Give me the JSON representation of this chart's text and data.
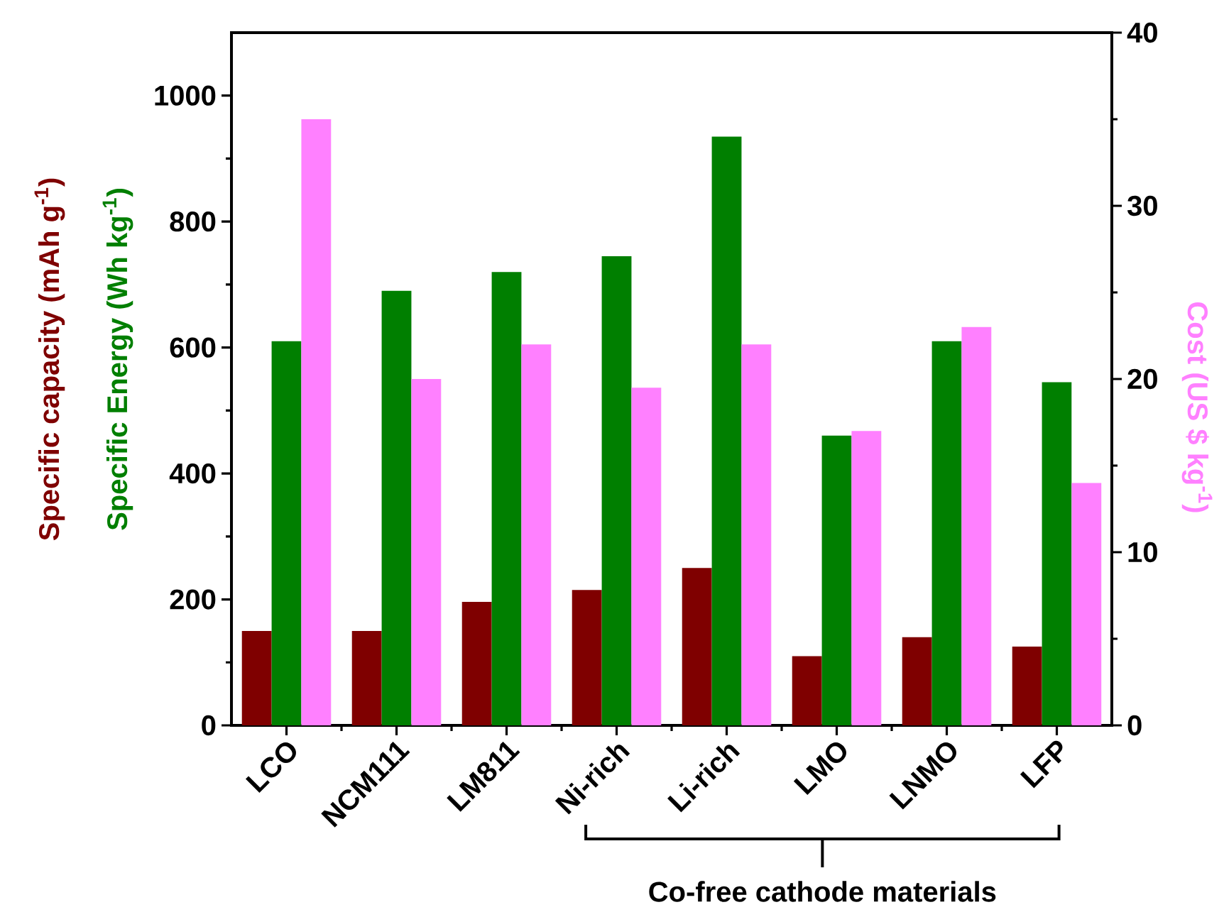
{
  "chart_data": {
    "type": "bar",
    "categories": [
      "LCO",
      "NCM111",
      "LM811",
      "Ni-rich",
      "Li-rich",
      "LMO",
      "LNMO",
      "LFP"
    ],
    "series": [
      {
        "name": "Specific capacity (mAh g$^{-1}$)",
        "color": "#7f0000",
        "values": [
          150,
          150,
          196,
          215,
          250,
          110,
          140,
          125
        ]
      },
      {
        "name": "Specific Energy (Wh kg$^{-1}$)",
        "color": "#007f00",
        "values": [
          610,
          690,
          720,
          745,
          935,
          460,
          610,
          545
        ]
      },
      {
        "name": "Cost (US $ kg$^{-1}$)",
        "color": "#ff80ff",
        "axis": "y2",
        "values": [
          35,
          20,
          22,
          19.5,
          22,
          17,
          23,
          14
        ]
      }
    ],
    "ylim": [
      0,
      1100
    ],
    "yticks": [
      0,
      200,
      400,
      600,
      800,
      1000
    ],
    "y2lim": [
      0,
      40
    ],
    "y2ticks": [
      0,
      10,
      20,
      30,
      40
    ],
    "annotations": [
      "Co-free cathode materials"
    ]
  }
}
